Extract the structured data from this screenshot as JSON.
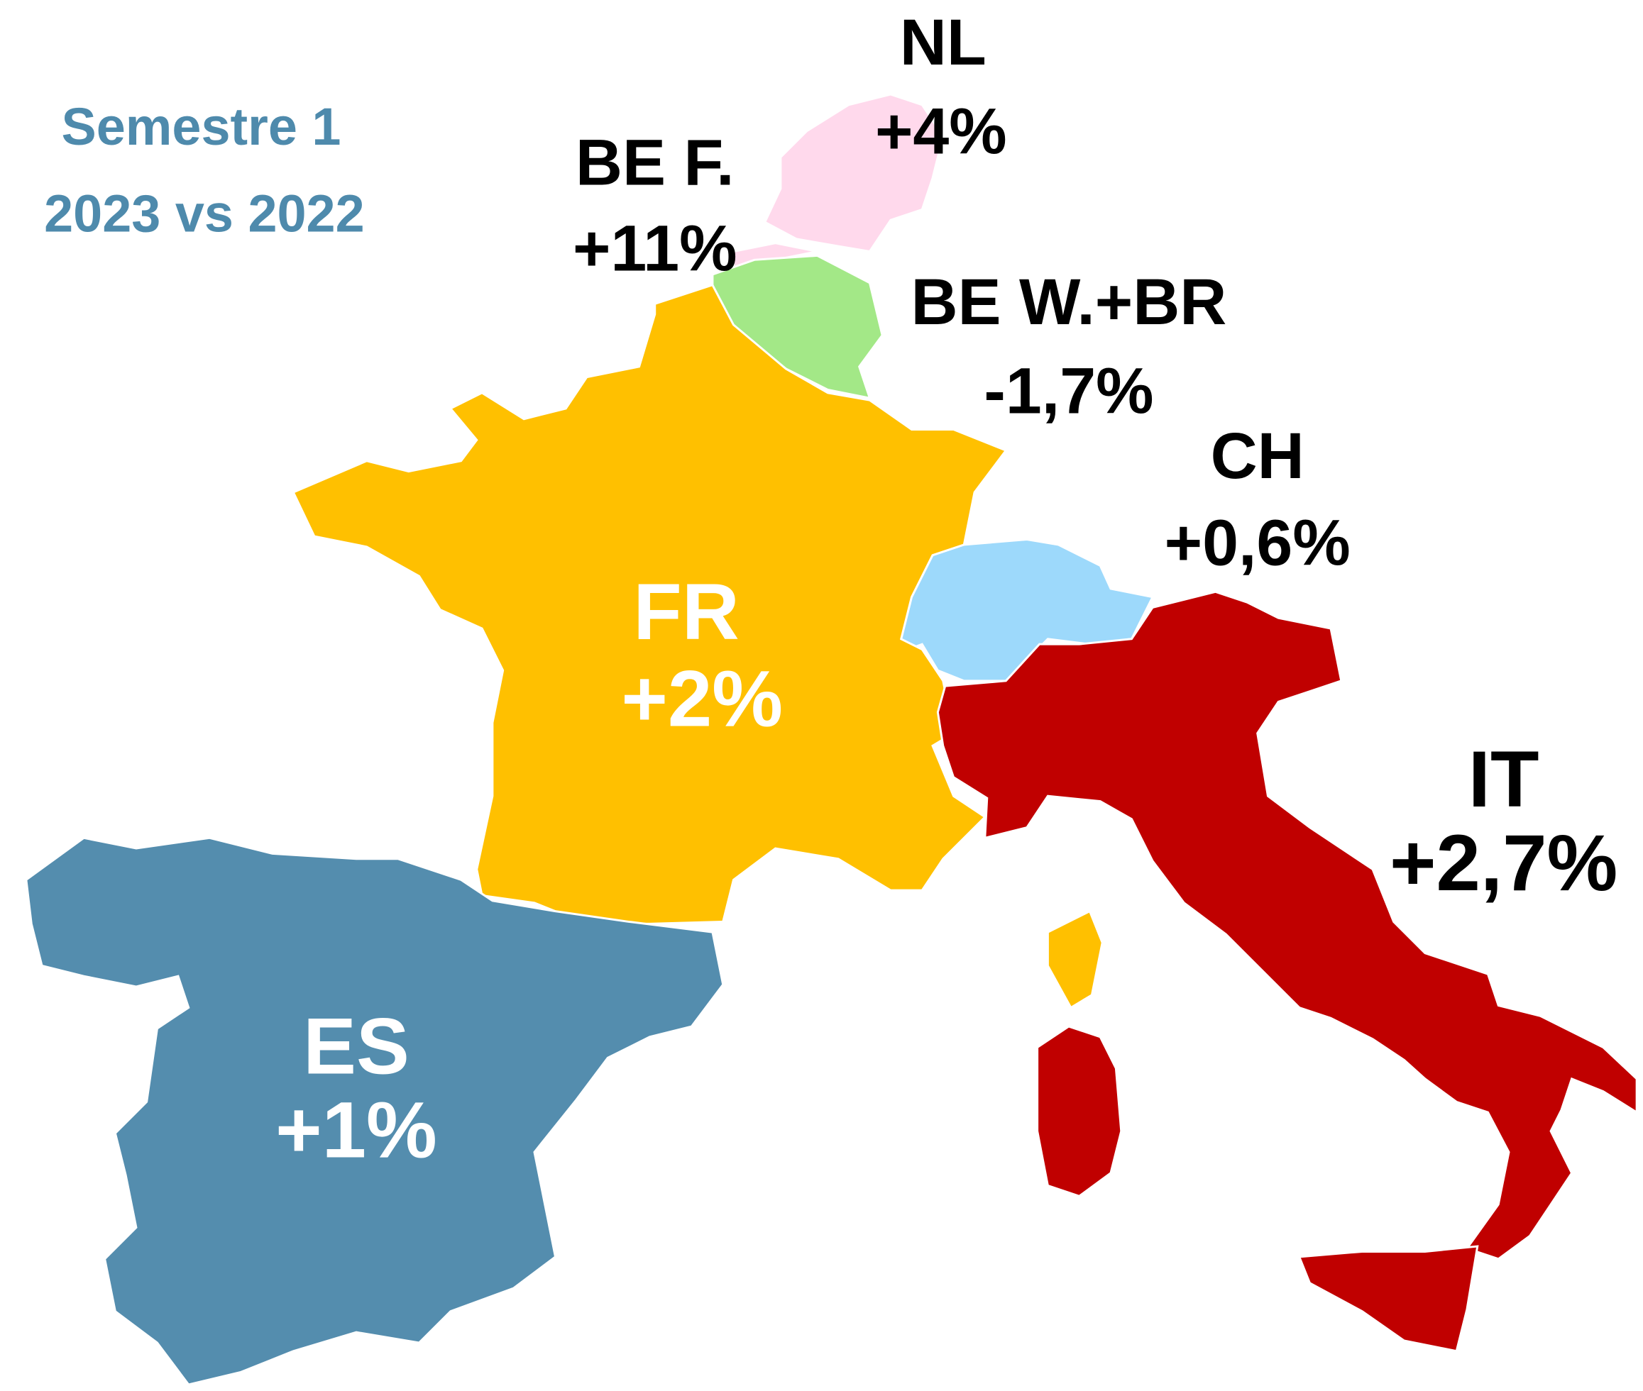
{
  "title": [
    "Semestre 1",
    "2023 vs 2022"
  ],
  "regions": [
    {
      "code": "NL",
      "change": "+4%",
      "color": "#ffd9ec"
    },
    {
      "code": "BE F.",
      "change": "+11%",
      "color": "#ffd9ec"
    },
    {
      "code": "BE W.+BR",
      "change": "-1,7%",
      "color": "#a3e887"
    },
    {
      "code": "CH",
      "change": "+0,6%",
      "color": "#9dd9fb"
    },
    {
      "code": "FR",
      "change": "+2%",
      "color": "#ffc000"
    },
    {
      "code": "ES",
      "change": "+1%",
      "color": "#548dae"
    },
    {
      "code": "IT",
      "change": "+2,7%",
      "color": "#c00000"
    }
  ]
}
